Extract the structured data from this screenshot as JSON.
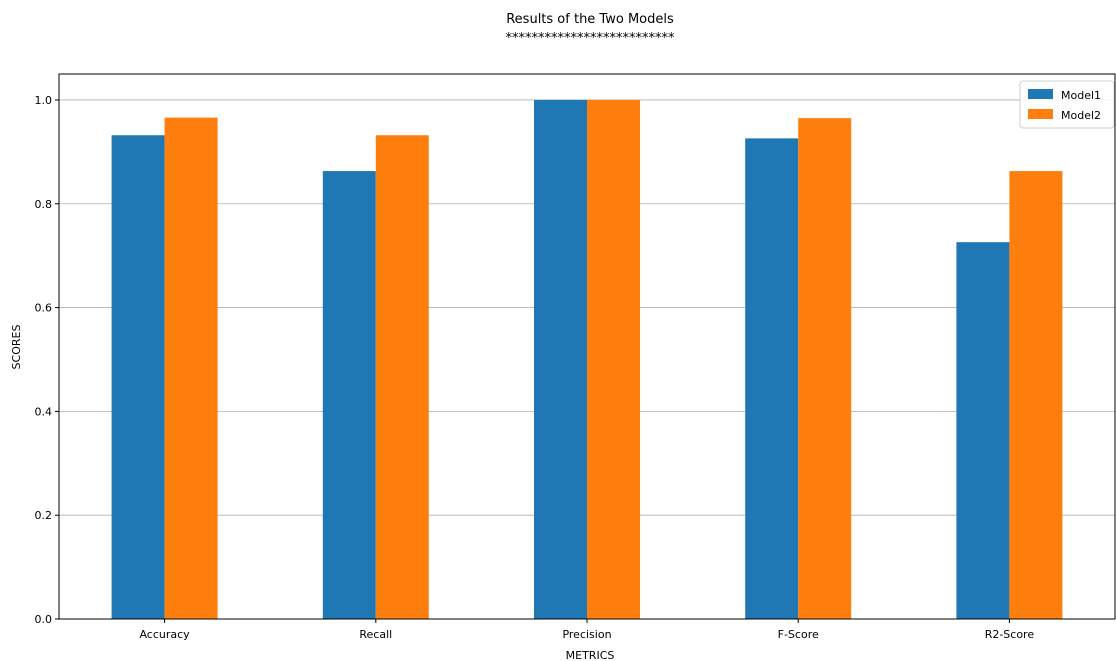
{
  "chart_data": {
    "type": "bar",
    "title": "Results of the Two Models",
    "subtitle": "**************************",
    "xlabel": "METRICS",
    "ylabel": "SCORES",
    "categories": [
      "Accuracy",
      "Recall",
      "Precision",
      "F-Score",
      "R2-Score"
    ],
    "series": [
      {
        "name": "Model1",
        "color": "#1f77b4",
        "values": [
          0.932,
          0.863,
          1.0,
          0.926,
          0.726
        ]
      },
      {
        "name": "Model2",
        "color": "#ff7f0e",
        "values": [
          0.966,
          0.932,
          1.0,
          0.965,
          0.863
        ]
      }
    ],
    "ylim": [
      0,
      1.05
    ],
    "yticks": [
      "0.0",
      "0.2",
      "0.4",
      "0.6",
      "0.8",
      "1.0"
    ],
    "grid": "y",
    "legend": "top-right"
  }
}
